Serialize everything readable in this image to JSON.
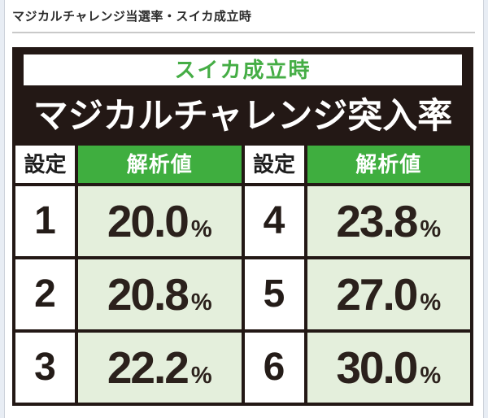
{
  "page": {
    "title": "マジカルチャレンジ当選率・スイカ成立時"
  },
  "board": {
    "condition_label": "スイカ成立時",
    "heading": "マジカルチャレンジ突入率"
  },
  "table": {
    "header": {
      "setting": "設定",
      "value": "解析値"
    },
    "percent": "%",
    "rows": [
      {
        "left": {
          "setting": "1",
          "value": "20.0"
        },
        "right": {
          "setting": "4",
          "value": "23.8"
        }
      },
      {
        "left": {
          "setting": "2",
          "value": "20.8"
        },
        "right": {
          "setting": "5",
          "value": "27.0"
        }
      },
      {
        "left": {
          "setting": "3",
          "value": "22.2"
        },
        "right": {
          "setting": "6",
          "value": "30.0"
        }
      }
    ]
  },
  "colors": {
    "board_dark": "#231815",
    "accent_green": "#3fae3f",
    "light_green_cell": "#e4efdc",
    "condition_text_green": "#45ad45",
    "page_background": "#e8edf4"
  },
  "chart_data": {
    "type": "table",
    "title": "マジカルチャレンジ突入率",
    "subtitle": "スイカ成立時",
    "columns": [
      "設定",
      "解析値"
    ],
    "rows": [
      [
        "1",
        "20.0%"
      ],
      [
        "2",
        "20.8%"
      ],
      [
        "3",
        "22.2%"
      ],
      [
        "4",
        "23.8%"
      ],
      [
        "5",
        "27.0%"
      ],
      [
        "6",
        "30.0%"
      ]
    ]
  }
}
